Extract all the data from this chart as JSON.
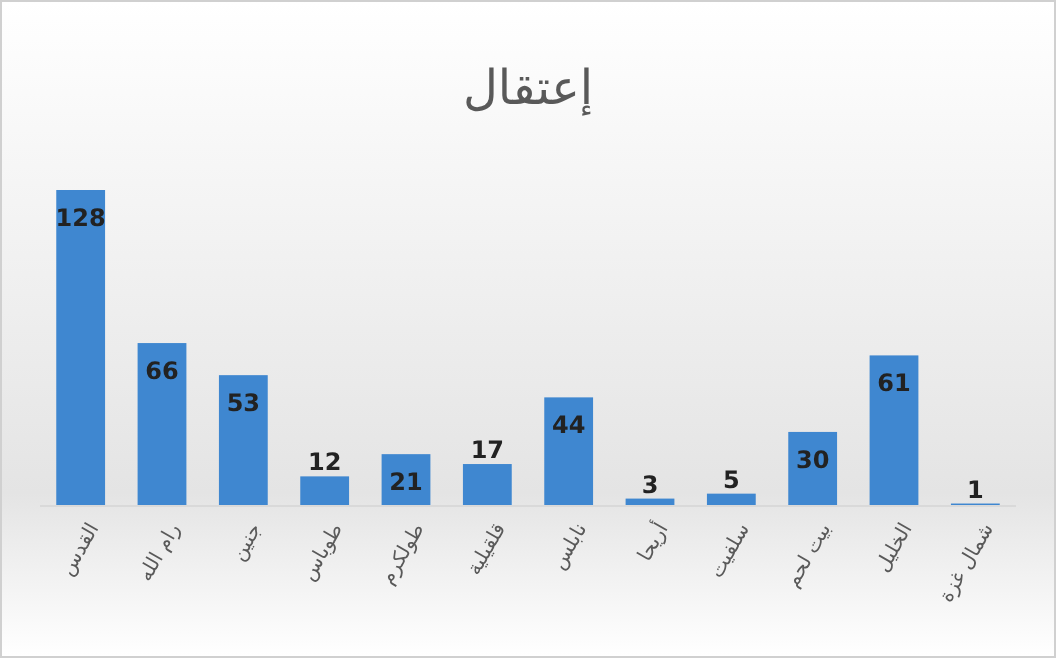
{
  "chart_data": {
    "type": "bar",
    "title": "إعتقال",
    "categories": [
      "القدس",
      "رام الله",
      "جنين",
      "طوباس",
      "طولكرم",
      "قلقيلية",
      "نابلس",
      "أريحا",
      "سلفيت",
      "بيت لحم",
      "الخليل",
      "شمال غزة"
    ],
    "values": [
      128,
      66,
      53,
      12,
      21,
      17,
      44,
      3,
      5,
      30,
      61,
      1
    ],
    "color": "#3f87d0",
    "data_labels": true
  }
}
